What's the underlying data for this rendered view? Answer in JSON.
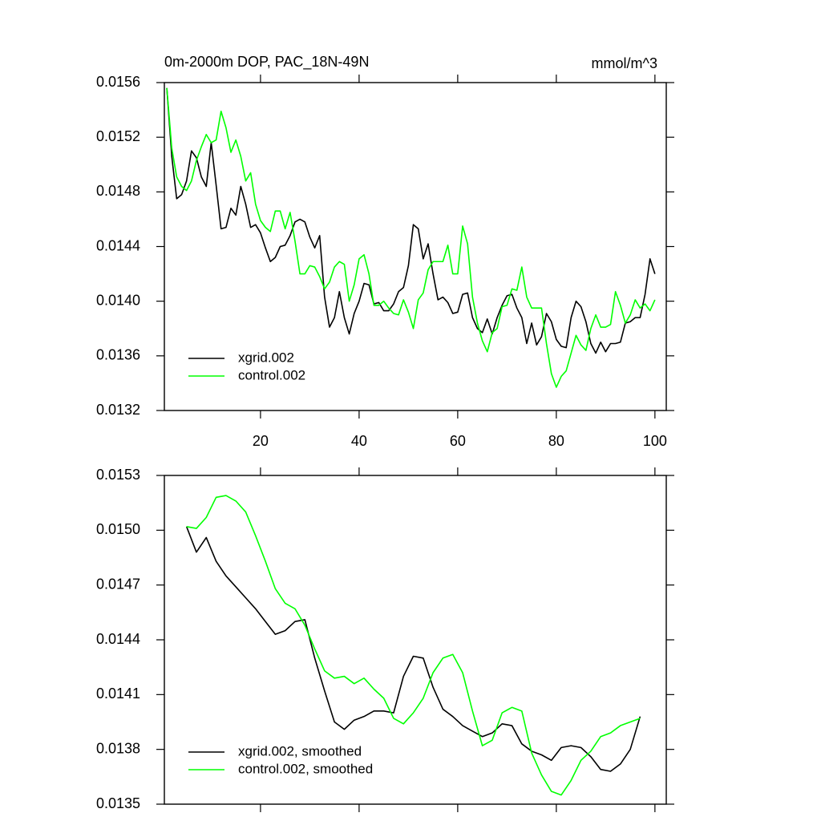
{
  "chart_data": [
    {
      "type": "line",
      "title": "0m-2000m DOP, PAC_18N-49N",
      "units": "mmol/m^3",
      "legend": "lower-left",
      "xlim": [
        0.5,
        102.3
      ],
      "xticks": [
        20,
        40,
        60,
        80,
        100
      ],
      "ylim": [
        0.0132,
        0.0156
      ],
      "yticks": [
        0.0156,
        0.0152,
        0.0148,
        0.0144,
        {
          "value": 0.014,
          "label": "0.0140"
        },
        0.0136,
        0.0132
      ],
      "x": [
        1,
        2,
        3,
        4,
        5,
        6,
        7,
        8,
        9,
        10,
        11,
        12,
        13,
        14,
        15,
        16,
        17,
        18,
        19,
        20,
        21,
        22,
        23,
        24,
        25,
        26,
        27,
        28,
        29,
        30,
        31,
        32,
        33,
        34,
        35,
        36,
        37,
        38,
        39,
        40,
        41,
        42,
        43,
        44,
        45,
        46,
        47,
        48,
        49,
        50,
        51,
        52,
        53,
        54,
        55,
        56,
        57,
        58,
        59,
        60,
        61,
        62,
        63,
        64,
        65,
        66,
        67,
        68,
        69,
        70,
        71,
        72,
        73,
        74,
        75,
        76,
        77,
        78,
        79,
        80,
        81,
        82,
        83,
        84,
        85,
        86,
        87,
        88,
        89,
        90,
        91,
        92,
        93,
        94,
        95,
        96,
        97,
        98,
        99,
        100
      ],
      "series": [
        {
          "name": "xgrid.002",
          "color": "#000000",
          "values": [
            0.01556,
            0.01506,
            0.01475,
            0.01478,
            0.01488,
            0.0151,
            0.01505,
            0.01491,
            0.01484,
            0.01516,
            0.01485,
            0.01453,
            0.01454,
            0.01468,
            0.01463,
            0.01484,
            0.01471,
            0.01454,
            0.01456,
            0.0145,
            0.01439,
            0.01429,
            0.01432,
            0.0144,
            0.01441,
            0.01448,
            0.01458,
            0.0146,
            0.01458,
            0.01447,
            0.01439,
            0.01448,
            0.01403,
            0.01381,
            0.01388,
            0.01407,
            0.01388,
            0.01376,
            0.01391,
            0.014,
            0.01413,
            0.01412,
            0.01398,
            0.01399,
            0.01393,
            0.01393,
            0.01398,
            0.01407,
            0.0141,
            0.01426,
            0.01456,
            0.01453,
            0.01431,
            0.01442,
            0.0142,
            0.01401,
            0.01403,
            0.01399,
            0.01391,
            0.01392,
            0.01405,
            0.01406,
            0.01388,
            0.0138,
            0.01377,
            0.01387,
            0.01376,
            0.01388,
            0.01397,
            0.01404,
            0.01405,
            0.01395,
            0.01388,
            0.01369,
            0.01384,
            0.01368,
            0.01374,
            0.01391,
            0.01385,
            0.01372,
            0.01367,
            0.01366,
            0.01388,
            0.014,
            0.01396,
            0.01385,
            0.01369,
            0.01362,
            0.0137,
            0.01363,
            0.01369,
            0.01369,
            0.0137,
            0.01384,
            0.01385,
            0.01388,
            0.01388,
            0.01405,
            0.01431,
            0.0142
          ]
        },
        {
          "name": "control.002",
          "color": "#00ff00",
          "values": [
            0.01556,
            0.01512,
            0.01491,
            0.01484,
            0.01481,
            0.01488,
            0.01503,
            0.01513,
            0.01522,
            0.01516,
            0.01518,
            0.01539,
            0.01527,
            0.01509,
            0.01518,
            0.01506,
            0.01488,
            0.01494,
            0.01471,
            0.01459,
            0.01454,
            0.01451,
            0.01466,
            0.01466,
            0.01453,
            0.01465,
            0.01444,
            0.0142,
            0.0142,
            0.01426,
            0.01425,
            0.01418,
            0.01409,
            0.01414,
            0.01425,
            0.01429,
            0.01427,
            0.014,
            0.01412,
            0.01431,
            0.01434,
            0.0142,
            0.01397,
            0.01397,
            0.014,
            0.01395,
            0.01391,
            0.0139,
            0.01401,
            0.01392,
            0.0138,
            0.01401,
            0.01406,
            0.01423,
            0.01429,
            0.01429,
            0.01429,
            0.01441,
            0.0142,
            0.0142,
            0.01455,
            0.01442,
            0.01403,
            0.01384,
            0.01371,
            0.01363,
            0.01377,
            0.0138,
            0.01396,
            0.01397,
            0.01409,
            0.01408,
            0.01425,
            0.01403,
            0.01395,
            0.01395,
            0.01395,
            0.01369,
            0.01347,
            0.01337,
            0.01345,
            0.01349,
            0.01362,
            0.01375,
            0.01368,
            0.01364,
            0.0138,
            0.0139,
            0.01381,
            0.01381,
            0.01383,
            0.01407,
            0.01397,
            0.01384,
            0.0139,
            0.01401,
            0.01395,
            0.01398,
            0.01393,
            0.01401
          ]
        }
      ]
    },
    {
      "type": "line",
      "legend": "lower-left",
      "xlim": [
        0.5,
        102.3
      ],
      "xticks": [
        20,
        40,
        60,
        80,
        100
      ],
      "ylim": [
        0.0135,
        0.0153
      ],
      "yticks": [
        0.0153,
        {
          "value": 0.015,
          "label": "0.0150"
        },
        0.0147,
        0.0144,
        0.0141,
        0.0138,
        0.0135
      ],
      "x": [
        5,
        7,
        9,
        11,
        13,
        15,
        17,
        19,
        21,
        23,
        25,
        27,
        29,
        31,
        33,
        35,
        37,
        39,
        41,
        43,
        45,
        47,
        49,
        51,
        53,
        55,
        57,
        59,
        61,
        63,
        65,
        67,
        69,
        71,
        73,
        75,
        77,
        79,
        81,
        83,
        85,
        87,
        89,
        91,
        93,
        95,
        97
      ],
      "series": [
        {
          "name": "xgrid.002, smoothed",
          "color": "#000000",
          "values": [
            0.01502,
            0.01488,
            0.01496,
            0.01483,
            0.01475,
            0.01469,
            0.01463,
            0.01457,
            0.0145,
            0.01443,
            0.01445,
            0.0145,
            0.01451,
            0.0143,
            0.01412,
            0.01395,
            0.01391,
            0.01396,
            0.01398,
            0.01401,
            0.01401,
            0.014,
            0.0142,
            0.01431,
            0.0143,
            0.01414,
            0.01402,
            0.01398,
            0.01393,
            0.0139,
            0.01387,
            0.01389,
            0.01394,
            0.01393,
            0.01383,
            0.01379,
            0.01377,
            0.01374,
            0.01381,
            0.01382,
            0.01381,
            0.01376,
            0.01369,
            0.01368,
            0.01372,
            0.0138,
            0.01398
          ]
        },
        {
          "name": "control.002, smoothed",
          "color": "#00ff00",
          "values": [
            0.01502,
            0.01501,
            0.01507,
            0.01518,
            0.01519,
            0.01516,
            0.0151,
            0.01497,
            0.01483,
            0.01468,
            0.0146,
            0.01457,
            0.01448,
            0.01435,
            0.01423,
            0.01419,
            0.0142,
            0.01416,
            0.01419,
            0.01413,
            0.01408,
            0.01397,
            0.01394,
            0.014,
            0.01408,
            0.01422,
            0.0143,
            0.01432,
            0.01422,
            0.01401,
            0.01382,
            0.01385,
            0.014,
            0.01403,
            0.01401,
            0.01378,
            0.01366,
            0.01357,
            0.01355,
            0.01363,
            0.01374,
            0.01379,
            0.01387,
            0.01389,
            0.01393,
            0.01395,
            0.01397
          ]
        }
      ]
    }
  ]
}
